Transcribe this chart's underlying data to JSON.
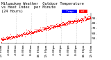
{
  "title_line": "Milwaukee Weather  Outdoor Temperature",
  "title_line2": "vs Heat Index  per Minute",
  "title_line3": "(24 Hours)",
  "background_color": "#ffffff",
  "plot_bg_color": "#ffffff",
  "grid_color": "#aaaaaa",
  "temp_color": "#ff0000",
  "heat_color": "#ff0000",
  "legend_temp_color": "#0000ff",
  "legend_heat_color": "#ff0000",
  "legend_temp_label": "Temp",
  "legend_heat_label": "HI",
  "ylim": [
    40,
    100
  ],
  "xlim": [
    0,
    1440
  ],
  "yticks": [
    50,
    60,
    70,
    80,
    90
  ],
  "ytick_labels": [
    "50.",
    "60.",
    "70.",
    "80.",
    "90."
  ],
  "xtick_positions": [
    0,
    120,
    240,
    360,
    480,
    600,
    720,
    840,
    960,
    1080,
    1200,
    1320,
    1440
  ],
  "xtick_labels": [
    "12:00am",
    "2:00am",
    "4:00am",
    "6:00am",
    "8:00am",
    "10:00am",
    "12:00pm",
    "2:00pm",
    "4:00pm",
    "6:00pm",
    "8:00pm",
    "10:00pm",
    "12:00am"
  ],
  "vgrid_positions": [
    240,
    480,
    720,
    960,
    1200
  ],
  "n_points": 1440,
  "temp_start": 47,
  "temp_end": 90,
  "title_fontsize": 3.8,
  "tick_fontsize": 3.2,
  "dot_size": 0.5,
  "figsize": [
    1.6,
    0.87
  ],
  "dpi": 100
}
